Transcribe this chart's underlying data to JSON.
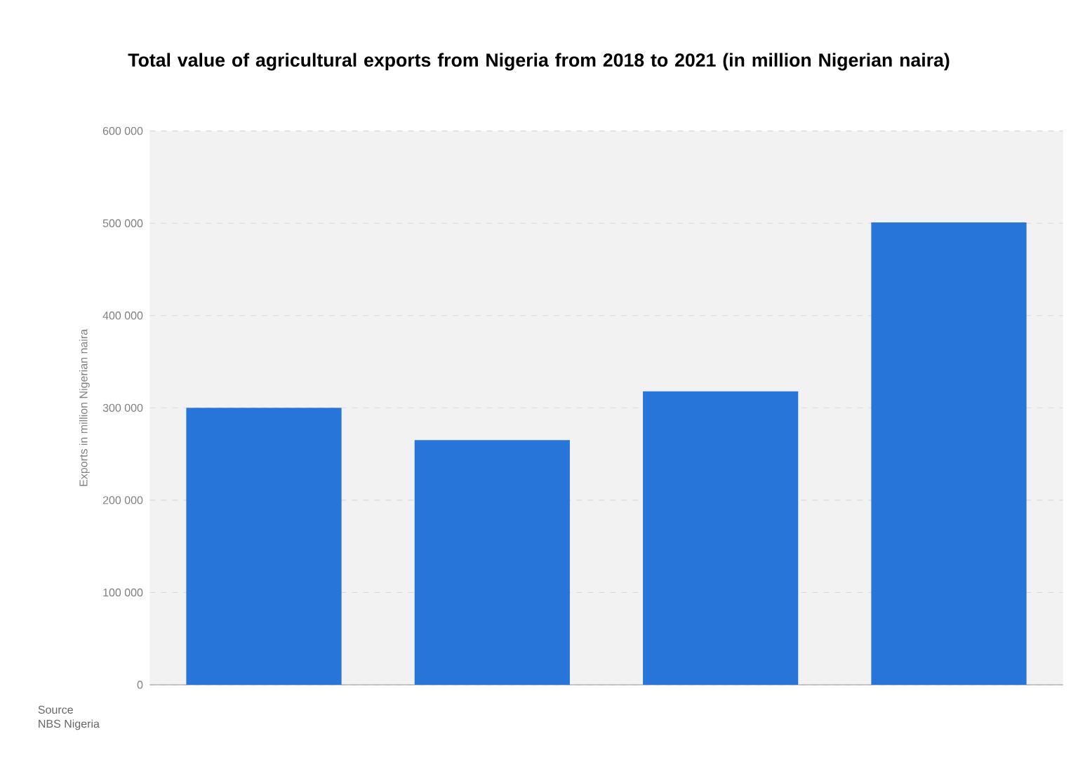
{
  "chart_data": {
    "type": "bar",
    "title": "Total value of agricultural exports from Nigeria from 2018 to 2021 (in million Nigerian naira)",
    "ylabel": "Exports in million Nigerian naira",
    "categories": [
      null,
      null,
      null,
      null
    ],
    "values": [
      300000,
      265000,
      318000,
      501000
    ],
    "color": "#2775d9",
    "ylim": [
      0,
      600000
    ],
    "yticks": [
      0,
      {
        "value": 100000,
        "label": "100 000"
      },
      {
        "value": 200000,
        "label": "200 000"
      },
      {
        "value": 300000,
        "label": "300 000"
      },
      {
        "value": 400000,
        "label": "400 000"
      },
      {
        "value": 500000,
        "label": "500 000"
      },
      {
        "value": 600000,
        "label": "600 000"
      }
    ],
    "grid": "y",
    "annotations": [
      "Source",
      "NBS Nigeria"
    ]
  }
}
